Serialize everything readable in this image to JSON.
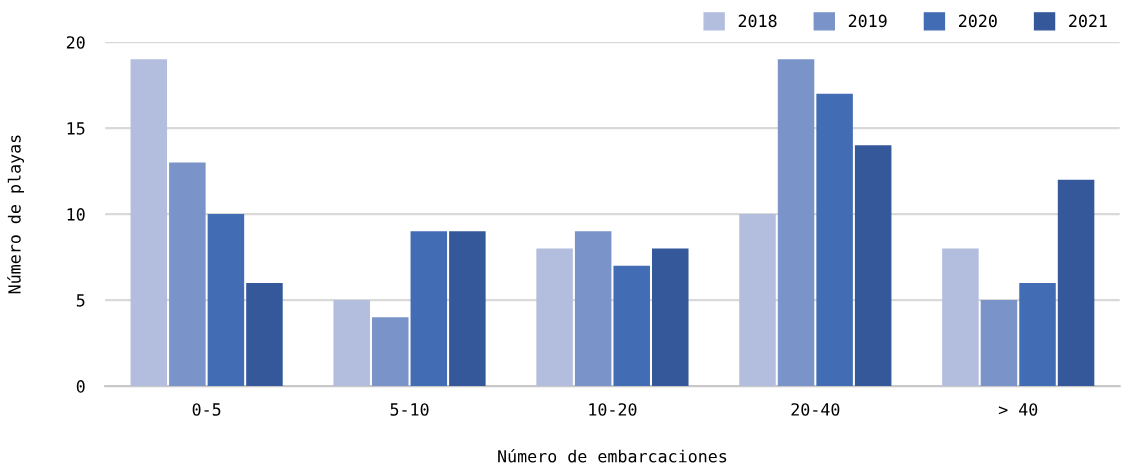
{
  "chart_data": {
    "type": "bar",
    "xlabel": "Número de embarcaciones",
    "ylabel": "Número de playas",
    "categories": [
      "0-5",
      "5-10",
      "10-20",
      "20-40",
      "> 40"
    ],
    "series": [
      {
        "name": "2018",
        "color": "#b3bede",
        "values": [
          19,
          5,
          8,
          10,
          8
        ]
      },
      {
        "name": "2019",
        "color": "#7a93c9",
        "values": [
          13,
          4,
          9,
          19,
          5
        ]
      },
      {
        "name": "2020",
        "color": "#426cb4",
        "values": [
          10,
          9,
          7,
          17,
          6
        ]
      },
      {
        "name": "2021",
        "color": "#34589a",
        "values": [
          6,
          9,
          8,
          14,
          12
        ]
      }
    ],
    "ylim": [
      0,
      20
    ],
    "yticks": [
      0,
      5,
      10,
      15,
      20
    ],
    "grid": "y",
    "legend": "top right"
  }
}
